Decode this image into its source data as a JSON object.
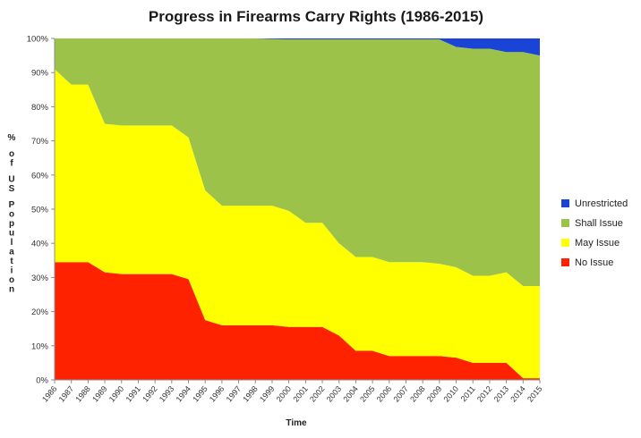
{
  "chart_data": {
    "type": "area",
    "stacked": true,
    "title": "Progress in Firearms Carry Rights (1986-2015)",
    "xlabel": "Time",
    "ylabel": "% of US Population",
    "ylim": [
      0,
      100
    ],
    "y_ticks": [
      "0%",
      "10%",
      "20%",
      "30%",
      "40%",
      "50%",
      "60%",
      "70%",
      "80%",
      "90%",
      "100%"
    ],
    "categories": [
      "1986",
      "1987",
      "1988",
      "1989",
      "1990",
      "1991",
      "1992",
      "1993",
      "1994",
      "1995",
      "1996",
      "1997",
      "1998",
      "1999",
      "2000",
      "2001",
      "2002",
      "2003",
      "2004",
      "2005",
      "2006",
      "2007",
      "2008",
      "2009",
      "2010",
      "2011",
      "2012",
      "2013",
      "2014",
      "2015"
    ],
    "series": [
      {
        "name": "No Issue",
        "color": "#ff2200",
        "values": [
          34.5,
          34.5,
          34.5,
          31.5,
          31,
          31,
          31,
          31,
          29.5,
          17.5,
          16,
          16,
          16,
          16,
          15.5,
          15.5,
          15.5,
          13,
          8.5,
          8.5,
          7,
          7,
          7,
          7,
          6.5,
          5,
          5,
          5,
          0.5,
          0.5
        ]
      },
      {
        "name": "May Issue",
        "color": "#ffff00",
        "values": [
          56.5,
          52,
          52,
          43.5,
          43.5,
          43.5,
          43.5,
          43.5,
          41.5,
          38,
          35,
          35,
          35,
          35,
          34,
          30.5,
          30.5,
          27,
          27.5,
          27.5,
          27.5,
          27.5,
          27.5,
          27,
          26.5,
          25.5,
          25.5,
          26.5,
          27,
          27
        ]
      },
      {
        "name": "Shall Issue",
        "color": "#9dc24a",
        "values": [
          9,
          13.5,
          13.5,
          25,
          25.5,
          25.5,
          25.5,
          25.5,
          29,
          44.5,
          49,
          49,
          49,
          48.8,
          50.2,
          53.7,
          53.7,
          59.7,
          63.7,
          63.7,
          65.2,
          65.2,
          65.2,
          65.7,
          64.5,
          66.5,
          66.5,
          64.5,
          68.5,
          67.5
        ]
      },
      {
        "name": "Unrestricted",
        "color": "#1a44d6",
        "values": [
          0,
          0,
          0,
          0,
          0,
          0,
          0,
          0,
          0,
          0,
          0,
          0,
          0,
          0.2,
          0.3,
          0.3,
          0.3,
          0.3,
          0.3,
          0.3,
          0.3,
          0.3,
          0.3,
          0.3,
          2.5,
          3,
          3,
          4,
          4,
          5
        ]
      }
    ],
    "legend": [
      "Unrestricted",
      "Shall Issue",
      "May Issue",
      "No Issue"
    ],
    "legend_position": "right",
    "grid": false
  }
}
